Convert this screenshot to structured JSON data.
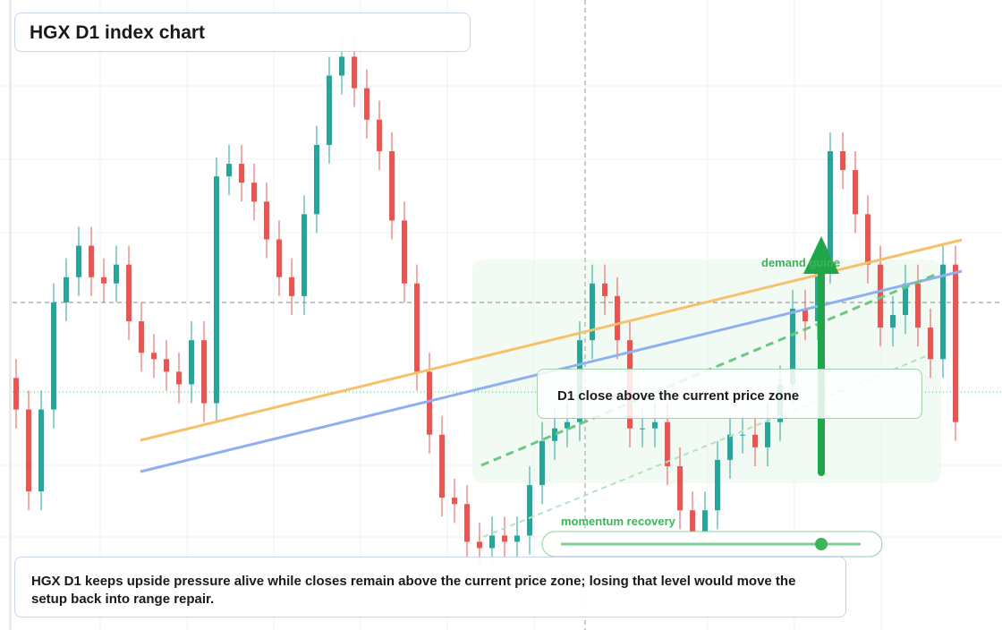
{
  "chart_data": {
    "type": "candlestick",
    "title": "HGX D1 index chart",
    "ylim": [
      0,
      100
    ],
    "up_color": "#26a69a",
    "down_color": "#ef5350",
    "annotations": {
      "zone": "D1 close above the current price zone",
      "guide": "demand guide",
      "recovery": "momentum recovery"
    },
    "note": "HGX D1 keeps upside pressure alive while closes remain above the current price zone; losing that level would move the setup back into range repair.",
    "series": {
      "open": [
        40,
        35,
        22,
        35,
        52,
        56,
        61,
        56,
        55,
        58,
        49,
        44,
        43,
        41,
        39,
        46,
        36,
        72,
        74,
        71,
        68,
        62,
        56,
        53,
        66,
        77,
        88,
        91,
        86,
        81,
        76,
        65,
        55,
        41,
        31,
        21,
        20,
        14,
        13,
        15,
        14,
        15,
        23,
        30,
        32,
        33,
        46,
        55,
        53,
        46,
        32,
        32,
        33,
        26,
        19,
        15,
        19,
        27,
        31,
        31,
        29,
        33,
        39,
        51,
        49,
        58,
        76,
        73,
        66,
        58,
        48,
        50,
        55,
        48,
        43,
        58
      ],
      "high": [
        43,
        38,
        38,
        55,
        59,
        64,
        64,
        59,
        61,
        61,
        52,
        47,
        46,
        44,
        49,
        49,
        75,
        77,
        77,
        74,
        71,
        65,
        59,
        69,
        80,
        91,
        94,
        94,
        89,
        84,
        79,
        68,
        58,
        44,
        34,
        24,
        23,
        17,
        18,
        18,
        18,
        26,
        33,
        35,
        36,
        49,
        58,
        58,
        56,
        49,
        35,
        36,
        36,
        29,
        22,
        22,
        30,
        34,
        34,
        34,
        36,
        42,
        54,
        54,
        61,
        79,
        79,
        76,
        69,
        61,
        53,
        58,
        58,
        51,
        61,
        61
      ],
      "low": [
        32,
        19,
        19,
        32,
        49,
        53,
        53,
        52,
        52,
        46,
        41,
        40,
        38,
        36,
        36,
        33,
        33,
        69,
        68,
        65,
        59,
        53,
        50,
        50,
        63,
        74,
        85,
        83,
        78,
        73,
        62,
        52,
        38,
        28,
        18,
        17,
        11,
        10,
        10,
        11,
        11,
        12,
        20,
        27,
        29,
        30,
        43,
        50,
        43,
        29,
        29,
        29,
        23,
        16,
        12,
        12,
        16,
        24,
        28,
        26,
        26,
        30,
        36,
        46,
        46,
        55,
        70,
        63,
        55,
        45,
        45,
        47,
        45,
        40,
        40,
        30
      ],
      "close": [
        35,
        22,
        35,
        52,
        56,
        61,
        56,
        55,
        58,
        49,
        44,
        43,
        41,
        39,
        46,
        36,
        72,
        74,
        71,
        68,
        62,
        56,
        53,
        66,
        77,
        88,
        91,
        86,
        81,
        76,
        65,
        55,
        41,
        31,
        21,
        20,
        14,
        13,
        15,
        14,
        15,
        23,
        30,
        32,
        33,
        46,
        55,
        53,
        46,
        32,
        32,
        33,
        26,
        19,
        15,
        19,
        27,
        31,
        31,
        29,
        33,
        39,
        51,
        49,
        58,
        76,
        73,
        66,
        58,
        48,
        50,
        55,
        48,
        43,
        58,
        33
      ]
    }
  }
}
